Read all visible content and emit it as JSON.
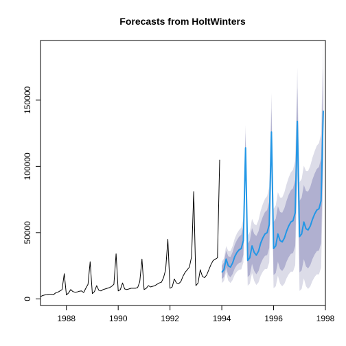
{
  "chart_data": {
    "type": "line",
    "title": "Forecasts from HoltWinters",
    "xlabel": "",
    "ylabel": "",
    "xlim": [
      1987,
      1998
    ],
    "ylim": [
      -5000,
      195000
    ],
    "x_ticks": [
      1988,
      1990,
      1992,
      1994,
      1996,
      1998
    ],
    "x_tick_labels": [
      "1988",
      "1990",
      "1992",
      "1994",
      "1996",
      "1998"
    ],
    "y_ticks": [
      0,
      50000,
      100000,
      150000
    ],
    "y_tick_labels": [
      "0",
      "50000",
      "100000",
      "150000"
    ],
    "grid": false,
    "legend": "none",
    "colors": {
      "observed": "#000000",
      "forecast": "#2297e6",
      "band80": "#b0b0d0",
      "band95": "#dcdce8"
    },
    "series": [
      {
        "role": "observed",
        "x": [
          1987.0,
          1987.083,
          1987.167,
          1987.25,
          1987.333,
          1987.417,
          1987.5,
          1987.583,
          1987.667,
          1987.75,
          1987.833,
          1987.917,
          1988.0,
          1988.083,
          1988.167,
          1988.25,
          1988.333,
          1988.417,
          1988.5,
          1988.583,
          1988.667,
          1988.75,
          1988.833,
          1988.917,
          1989.0,
          1989.083,
          1989.167,
          1989.25,
          1989.333,
          1989.417,
          1989.5,
          1989.583,
          1989.667,
          1989.75,
          1989.833,
          1989.917,
          1990.0,
          1990.083,
          1990.167,
          1990.25,
          1990.333,
          1990.417,
          1990.5,
          1990.583,
          1990.667,
          1990.75,
          1990.833,
          1990.917,
          1991.0,
          1991.083,
          1991.167,
          1991.25,
          1991.333,
          1991.417,
          1991.5,
          1991.583,
          1991.667,
          1991.75,
          1991.833,
          1991.917,
          1992.0,
          1992.083,
          1992.167,
          1992.25,
          1992.333,
          1992.417,
          1992.5,
          1992.583,
          1992.667,
          1992.75,
          1992.833,
          1992.917,
          1993.0,
          1993.083,
          1993.167,
          1993.25,
          1993.333,
          1993.417,
          1993.5,
          1993.583,
          1993.667,
          1993.75,
          1993.833,
          1993.917
        ],
        "y": [
          1700,
          2500,
          3000,
          3100,
          3500,
          3500,
          3200,
          4500,
          5000,
          6000,
          7000,
          19000,
          3000,
          4500,
          7000,
          5500,
          5000,
          5200,
          5800,
          6000,
          4800,
          8000,
          11000,
          28000,
          4000,
          5500,
          10000,
          6500,
          6000,
          7000,
          7500,
          8000,
          8500,
          9500,
          11000,
          34000,
          6000,
          7000,
          12000,
          7500,
          7000,
          7500,
          8000,
          8000,
          8000,
          8500,
          13000,
          30000,
          7000,
          8000,
          10000,
          9000,
          9500,
          10000,
          11000,
          12000,
          12500,
          16000,
          22000,
          45000,
          8000,
          9000,
          15000,
          12000,
          11500,
          13000,
          17000,
          20000,
          22000,
          24000,
          32000,
          81000,
          10000,
          12000,
          22000,
          17000,
          16000,
          18000,
          22000,
          26000,
          29000,
          30000,
          31000,
          105000
        ]
      },
      {
        "role": "forecast",
        "x": [
          1994.0,
          1994.083,
          1994.167,
          1994.25,
          1994.333,
          1994.417,
          1994.5,
          1994.583,
          1994.667,
          1994.75,
          1994.833,
          1994.917,
          1995.0,
          1995.083,
          1995.167,
          1995.25,
          1995.333,
          1995.417,
          1995.5,
          1995.583,
          1995.667,
          1995.75,
          1995.833,
          1995.917,
          1996.0,
          1996.083,
          1996.167,
          1996.25,
          1996.333,
          1996.417,
          1996.5,
          1996.583,
          1996.667,
          1996.75,
          1996.833,
          1996.917,
          1997.0,
          1997.083,
          1997.167,
          1997.25,
          1997.333,
          1997.417,
          1997.5,
          1997.583,
          1997.667,
          1997.75,
          1997.833,
          1997.917
        ],
        "y": [
          20000,
          22000,
          30000,
          25000,
          24000,
          27000,
          32000,
          35000,
          37000,
          38000,
          44000,
          114000,
          29000,
          31000,
          40000,
          35000,
          33000,
          36000,
          42000,
          46000,
          49000,
          50000,
          56000,
          126000,
          38000,
          40000,
          49000,
          44000,
          43000,
          46000,
          51000,
          55000,
          58000,
          59000,
          65000,
          134000,
          47000,
          49000,
          58000,
          53000,
          52000,
          55000,
          60000,
          64000,
          67000,
          68000,
          74000,
          142000
        ]
      }
    ],
    "intervals": {
      "x": [
        1994.0,
        1994.083,
        1994.167,
        1994.25,
        1994.333,
        1994.417,
        1994.5,
        1994.583,
        1994.667,
        1994.75,
        1994.833,
        1994.917,
        1995.0,
        1995.083,
        1995.167,
        1995.25,
        1995.333,
        1995.417,
        1995.5,
        1995.583,
        1995.667,
        1995.75,
        1995.833,
        1995.917,
        1996.0,
        1996.083,
        1996.167,
        1996.25,
        1996.333,
        1996.417,
        1996.5,
        1996.583,
        1996.667,
        1996.75,
        1996.833,
        1996.917,
        1997.0,
        1997.083,
        1997.167,
        1997.25,
        1997.333,
        1997.417,
        1997.5,
        1997.583,
        1997.667,
        1997.75,
        1997.833,
        1997.917
      ],
      "lower80": [
        15000,
        16500,
        23600,
        17900,
        16300,
        18700,
        23100,
        25600,
        27100,
        27600,
        33200,
        102700,
        16500,
        18000,
        26500,
        21000,
        18500,
        21000,
        26500,
        30000,
        32500,
        33000,
        38500,
        108000,
        18000,
        19500,
        28000,
        22500,
        21000,
        23500,
        28000,
        31500,
        34000,
        34500,
        40000,
        108500,
        20000,
        21500,
        30000,
        24500,
        23000,
        25500,
        30000,
        33500,
        36000,
        36500,
        42000,
        109500
      ],
      "upper80": [
        25000,
        27500,
        36400,
        32100,
        31700,
        35300,
        40900,
        44400,
        46900,
        48400,
        54800,
        125300,
        41500,
        44000,
        53500,
        49000,
        47500,
        51000,
        57500,
        62000,
        65500,
        67000,
        73500,
        144000,
        58000,
        60500,
        70000,
        65500,
        65000,
        68500,
        74000,
        78500,
        82000,
        83500,
        90000,
        159500,
        74000,
        76500,
        86000,
        81500,
        81000,
        84500,
        90000,
        94500,
        98000,
        99500,
        106000,
        174500
      ],
      "lower95": [
        12000,
        13500,
        20200,
        13800,
        12000,
        14200,
        18300,
        20600,
        22000,
        22200,
        27500,
        96700,
        10000,
        11500,
        19500,
        13500,
        10500,
        12500,
        17500,
        20500,
        22500,
        22500,
        27500,
        96500,
        8000,
        9500,
        17500,
        11500,
        9500,
        11500,
        15500,
        18500,
        20500,
        20500,
        25500,
        93500,
        6000,
        7500,
        15500,
        9500,
        7500,
        9500,
        13500,
        16500,
        18500,
        18500,
        23500,
        90500
      ],
      "upper95": [
        28000,
        30500,
        39800,
        36200,
        36000,
        39800,
        45700,
        49400,
        52000,
        53800,
        60500,
        131300,
        48000,
        50500,
        60500,
        56500,
        55500,
        59500,
        66500,
        71500,
        75500,
        77500,
        84500,
        155500,
        68000,
        70500,
        80500,
        76500,
        76500,
        80500,
        86500,
        91500,
        95500,
        97500,
        104500,
        174500,
        88000,
        90500,
        100500,
        96500,
        96500,
        100500,
        106500,
        111500,
        115500,
        117500,
        124500,
        193500
      ]
    }
  }
}
